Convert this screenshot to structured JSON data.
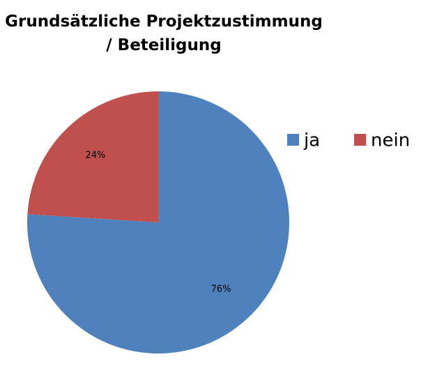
{
  "chart_data": {
    "type": "pie",
    "title": "Grundsätzliche Projektzustimmung / Beteiligung",
    "categories": [
      "ja",
      "nein"
    ],
    "values": [
      76,
      24
    ],
    "value_labels": [
      "76%",
      "24%"
    ],
    "colors": [
      "#4f81bd",
      "#c0504d"
    ],
    "legend": "right"
  }
}
